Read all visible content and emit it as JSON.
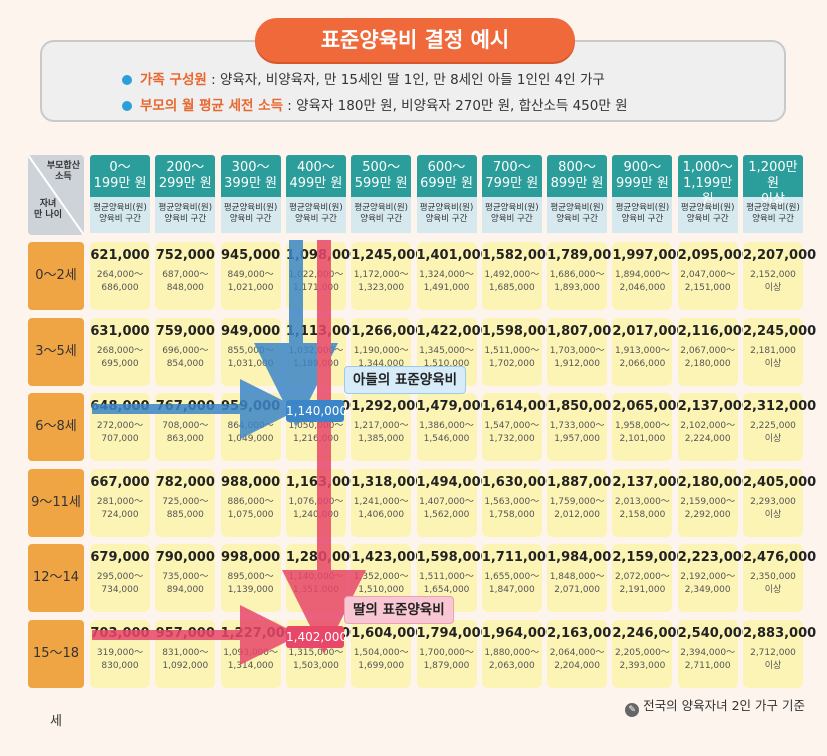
{
  "title": "표준양육비 결정 예시",
  "info": [
    {
      "key": "가족 구성원",
      "text": " : 양육자, 비양육자, 만 15세인 딸 1인, 만 8세인 아들 1인인 4인 가구"
    },
    {
      "key": "부모의 월 평균 세전 소득",
      "text": " : 양육자 180만 원, 비양육자 270만 원, 합산소득 450만 원"
    }
  ],
  "corner": {
    "top": "부모합산\n소득",
    "bottom": "자녀\n만 나이"
  },
  "sub_label": "평균양육비(원)\n양육비 구간",
  "columns": [
    "0～\n199만 원",
    "200～\n299만 원",
    "300～\n399만 원",
    "400～\n499만 원",
    "500～\n599만 원",
    "600～\n699만 원",
    "700～\n799만 원",
    "800～\n899만 원",
    "900～\n999만 원",
    "1,000～\n1,199만 원",
    "1,200만 원\n이상"
  ],
  "rows": [
    {
      "age": "0～2세",
      "cells": [
        [
          "621,000",
          "264,000～\n686,000"
        ],
        [
          "752,000",
          "687,000～\n848,000"
        ],
        [
          "945,000",
          "849,000～\n1,021,000"
        ],
        [
          "1,098,000",
          "1,022,000～\n1,171,000"
        ],
        [
          "1,245,000",
          "1,172,000～\n1,323,000"
        ],
        [
          "1,401,000",
          "1,324,000～\n1,491,000"
        ],
        [
          "1,582,000",
          "1,492,000～\n1,685,000"
        ],
        [
          "1,789,000",
          "1,686,000～\n1,893,000"
        ],
        [
          "1,997,000",
          "1,894,000～\n2,046,000"
        ],
        [
          "2,095,000",
          "2,047,000～\n2,151,000"
        ],
        [
          "2,207,000",
          "2,152,000\n이상"
        ]
      ]
    },
    {
      "age": "3～5세",
      "cells": [
        [
          "631,000",
          "268,000～\n695,000"
        ],
        [
          "759,000",
          "696,000～\n854,000"
        ],
        [
          "949,000",
          "855,000～\n1,031,000"
        ],
        [
          "1,113,000",
          "1,032,000～\n1,189,000"
        ],
        [
          "1,266,000",
          "1,190,000～\n1,344,000"
        ],
        [
          "1,422,000",
          "1,345,000～\n1,510,000"
        ],
        [
          "1,598,000",
          "1,511,000～\n1,702,000"
        ],
        [
          "1,807,000",
          "1,703,000～\n1,912,000"
        ],
        [
          "2,017,000",
          "1,913,000～\n2,066,000"
        ],
        [
          "2,116,000",
          "2,067,000～\n2,180,000"
        ],
        [
          "2,245,000",
          "2,181,000\n이상"
        ]
      ]
    },
    {
      "age": "6～8세",
      "cells": [
        [
          "648,000",
          "272,000～\n707,000"
        ],
        [
          "767,000",
          "708,000～\n863,000"
        ],
        [
          "959,000",
          "864,000～\n1,049,000"
        ],
        [
          "1,140,000",
          "1,050,000～\n1,216,000"
        ],
        [
          "1,292,000",
          "1,217,000～\n1,385,000"
        ],
        [
          "1,479,000",
          "1,386,000～\n1,546,000"
        ],
        [
          "1,614,000",
          "1,547,000～\n1,732,000"
        ],
        [
          "1,850,000",
          "1,733,000～\n1,957,000"
        ],
        [
          "2,065,000",
          "1,958,000～\n2,101,000"
        ],
        [
          "2,137,000",
          "2,102,000～\n2,224,000"
        ],
        [
          "2,312,000",
          "2,225,000\n이상"
        ]
      ]
    },
    {
      "age": "9～11세",
      "cells": [
        [
          "667,000",
          "281,000～\n724,000"
        ],
        [
          "782,000",
          "725,000～\n885,000"
        ],
        [
          "988,000",
          "886,000～\n1,075,000"
        ],
        [
          "1,163,000",
          "1,076,000～\n1,240,000"
        ],
        [
          "1,318,000",
          "1,241,000～\n1,406,000"
        ],
        [
          "1,494,000",
          "1,407,000～\n1,562,000"
        ],
        [
          "1,630,000",
          "1,563,000～\n1,758,000"
        ],
        [
          "1,887,000",
          "1,759,000～\n2,012,000"
        ],
        [
          "2,137,000",
          "2,013,000～\n2,158,000"
        ],
        [
          "2,180,000",
          "2,159,000～\n2,292,000"
        ],
        [
          "2,405,000",
          "2,293,000\n이상"
        ]
      ]
    },
    {
      "age": "12～14세",
      "cells": [
        [
          "679,000",
          "295,000～\n734,000"
        ],
        [
          "790,000",
          "735,000～\n894,000"
        ],
        [
          "998,000",
          "895,000～\n1,139,000"
        ],
        [
          "1,280,000",
          "1,140,000～\n1,351,000"
        ],
        [
          "1,423,000",
          "1,352,000～\n1,510,000"
        ],
        [
          "1,598,000",
          "1,511,000～\n1,654,000"
        ],
        [
          "1,711,000",
          "1,655,000～\n1,847,000"
        ],
        [
          "1,984,000",
          "1,848,000～\n2,071,000"
        ],
        [
          "2,159,000",
          "2,072,000～\n2,191,000"
        ],
        [
          "2,223,000",
          "2,192,000～\n2,349,000"
        ],
        [
          "2,476,000",
          "2,350,000\n이상"
        ]
      ]
    },
    {
      "age": "15～18세",
      "cells": [
        [
          "703,000",
          "319,000～\n830,000"
        ],
        [
          "957,000",
          "831,000～\n1,092,000"
        ],
        [
          "1,227,000",
          "1,093,000～\n1,314,000"
        ],
        [
          "1,402,000",
          "1,315,000～\n1,503,000"
        ],
        [
          "1,604,000",
          "1,504,000～\n1,699,000"
        ],
        [
          "1,794,000",
          "1,700,000～\n1,879,000"
        ],
        [
          "1,964,000",
          "1,880,000～\n2,063,000"
        ],
        [
          "2,163,000",
          "2,064,000～\n2,204,000"
        ],
        [
          "2,246,000",
          "2,205,000～\n2,393,000"
        ],
        [
          "2,540,000",
          "2,394,000～\n2,711,000"
        ],
        [
          "2,883,000",
          "2,712,000\n이상"
        ]
      ]
    }
  ],
  "highlight_son": {
    "value": "1,140,000",
    "label": "아들의 표준양육비",
    "row": 2,
    "col": 3
  },
  "highlight_daughter": {
    "value": "1,402,000",
    "label": "딸의 표준양육비",
    "row": 5,
    "col": 3
  },
  "footnote": "전국의 양육자녀 2인 가구 기준",
  "colors": {
    "title": "#f0693a",
    "header": "#2b9d9a",
    "row_head": "#f0a545",
    "cell": "#fcf4b5",
    "son": "#3b86c8",
    "daughter": "#e8476a"
  }
}
